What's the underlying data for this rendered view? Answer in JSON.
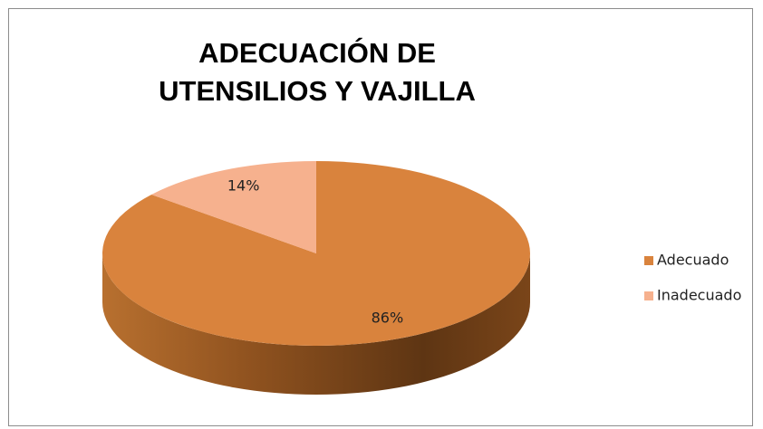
{
  "chart_data": {
    "type": "pie",
    "title": "ADECUACIÓN DE UTENSILIOS Y VAJILLA",
    "categories": [
      "Adecuado",
      "Inadecuado"
    ],
    "values": [
      86,
      14
    ],
    "value_labels": [
      "86%",
      "14%"
    ],
    "colors": [
      "#d9833d",
      "#f6b18e"
    ],
    "legend": "right"
  }
}
